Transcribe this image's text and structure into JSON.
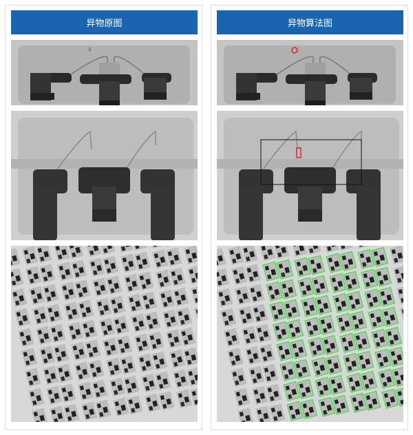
{
  "panels": [
    {
      "title": "异物原图",
      "variant": "original"
    },
    {
      "title": "异物算法图",
      "variant": "algorithm"
    }
  ],
  "colors": {
    "header": "#1a64b0",
    "defect_marker": "#e0202a",
    "region_box": "#111111",
    "detection_box": "#33dd33"
  }
}
